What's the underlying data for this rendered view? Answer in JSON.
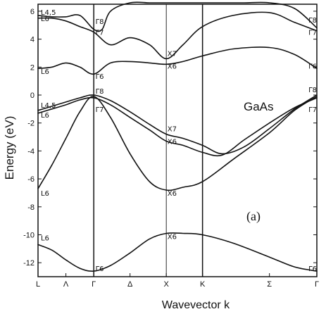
{
  "chart_data": {
    "type": "line",
    "title": "",
    "material_label": "GaAs",
    "panel_label": "(a)",
    "xlabel": "Wavevector k",
    "ylabel": "Energy (eV)",
    "ylim": [
      -13,
      6.5
    ],
    "yticks": [
      6,
      4,
      2,
      0,
      -2,
      -4,
      -6,
      -8,
      -10,
      -12
    ],
    "xlim": [
      0,
      5
    ],
    "xticks": [
      {
        "pos": 0.0,
        "label": "L"
      },
      {
        "pos": 0.5,
        "label": "Λ"
      },
      {
        "pos": 1.0,
        "label": "Γ"
      },
      {
        "pos": 1.65,
        "label": "Δ"
      },
      {
        "pos": 2.3,
        "label": "X"
      },
      {
        "pos": 2.95,
        "label": "K"
      },
      {
        "pos": 4.15,
        "label": "Σ"
      },
      {
        "pos": 5.0,
        "label": "Γ"
      }
    ],
    "vlines": [
      1.0,
      2.3,
      2.95
    ],
    "series": [
      {
        "x": [
          0,
          0.25,
          0.5,
          0.75,
          1.0,
          1.3,
          1.65,
          2.0,
          2.3,
          2.6,
          2.95,
          3.5,
          4.15,
          4.6,
          5.0
        ],
        "y": [
          -10.7,
          -11.1,
          -11.8,
          -12.4,
          -12.6,
          -12.2,
          -11.3,
          -10.3,
          -9.9,
          -9.9,
          -10.0,
          -10.6,
          -11.6,
          -12.3,
          -12.6
        ]
      },
      {
        "x": [
          0,
          0.25,
          0.5,
          0.75,
          1.0,
          1.3,
          1.65,
          2.0,
          2.3,
          2.6,
          2.95,
          3.5,
          4.15,
          4.6,
          5.0
        ],
        "y": [
          -6.7,
          -5.0,
          -3.1,
          -1.2,
          -0.1,
          -1.6,
          -4.2,
          -6.2,
          -6.8,
          -6.6,
          -6.2,
          -4.6,
          -2.7,
          -1.1,
          -0.1
        ]
      },
      {
        "x": [
          0,
          0.25,
          0.5,
          0.75,
          1.0,
          1.3,
          1.65,
          2.0,
          2.3,
          2.6,
          2.95,
          3.3,
          3.7,
          4.15,
          4.6,
          5.0
        ],
        "y": [
          -1.3,
          -1.0,
          -0.7,
          -0.35,
          -0.2,
          -0.7,
          -1.6,
          -2.5,
          -3.3,
          -3.6,
          -4.1,
          -4.3,
          -3.2,
          -2.0,
          -0.9,
          -0.2
        ]
      },
      {
        "x": [
          0,
          0.25,
          0.5,
          0.75,
          1.0,
          1.3,
          1.65,
          2.0,
          2.3,
          2.6,
          2.95,
          3.3,
          3.7,
          4.15,
          4.6,
          5.0
        ],
        "y": [
          -1.1,
          -0.8,
          -0.5,
          -0.2,
          0.0,
          -0.4,
          -1.2,
          -2.1,
          -2.8,
          -3.1,
          -3.6,
          -4.2,
          -3.7,
          -2.4,
          -1.0,
          0.0
        ]
      },
      {
        "x": [
          0,
          0.25,
          0.5,
          0.75,
          1.0,
          1.3,
          1.65,
          2.0,
          2.3,
          2.6,
          2.95,
          3.5,
          4.15,
          4.6,
          5.0
        ],
        "y": [
          1.9,
          2.0,
          2.3,
          2.0,
          1.5,
          2.3,
          2.4,
          2.3,
          2.2,
          2.4,
          2.8,
          3.3,
          3.4,
          2.9,
          1.9
        ]
      },
      {
        "x": [
          0,
          0.25,
          0.5,
          0.75,
          1.0,
          1.3,
          1.65,
          2.0,
          2.3,
          2.6,
          2.95,
          3.5,
          4.15,
          4.6,
          5.0
        ],
        "y": [
          5.5,
          5.5,
          5.3,
          4.9,
          4.5,
          3.6,
          4.1,
          3.6,
          2.6,
          3.6,
          4.9,
          5.7,
          5.9,
          5.2,
          4.6
        ]
      },
      {
        "x": [
          0,
          0.25,
          0.5,
          0.75,
          1.0,
          1.15,
          1.3,
          1.65,
          2.0,
          2.3,
          2.6,
          2.95,
          3.3,
          3.7,
          4.15,
          4.6,
          5.0
        ],
        "y": [
          5.7,
          5.6,
          5.6,
          5.7,
          4.7,
          4.7,
          6.0,
          6.6,
          6.6,
          6.6,
          6.6,
          6.6,
          6.6,
          6.6,
          6.6,
          6.2,
          4.8
        ]
      }
    ],
    "annotations": [
      {
        "text": "L4,5",
        "x": 0.05,
        "y": 5.75
      },
      {
        "text": "L6",
        "x": 0.05,
        "y": 5.3
      },
      {
        "text": "Γ8",
        "x": 1.03,
        "y": 5.1
      },
      {
        "text": "Γ7",
        "x": 1.03,
        "y": 4.3
      },
      {
        "text": "L6",
        "x": 0.05,
        "y": 1.5
      },
      {
        "text": "Γ6",
        "x": 1.03,
        "y": 1.15
      },
      {
        "text": "Γ8",
        "x": 1.03,
        "y": 0.1
      },
      {
        "text": "L4,5",
        "x": 0.05,
        "y": -0.9
      },
      {
        "text": "L6",
        "x": 0.05,
        "y": -1.6
      },
      {
        "text": "Γ7",
        "x": 1.03,
        "y": -1.2
      },
      {
        "text": "L6",
        "x": 0.05,
        "y": -7.2
      },
      {
        "text": "L6",
        "x": 0.05,
        "y": -10.4
      },
      {
        "text": "Γ6",
        "x": 1.03,
        "y": -12.6
      },
      {
        "text": "X7",
        "x": 2.32,
        "y": 2.8
      },
      {
        "text": "X6",
        "x": 2.32,
        "y": 1.9
      },
      {
        "text": "X7",
        "x": 2.32,
        "y": -2.6
      },
      {
        "text": "X6",
        "x": 2.32,
        "y": -3.5
      },
      {
        "text": "X6",
        "x": 2.32,
        "y": -7.2
      },
      {
        "text": "X6",
        "x": 2.32,
        "y": -10.3
      },
      {
        "text": "Γ8",
        "x": 4.85,
        "y": 5.2
      },
      {
        "text": "Γ7",
        "x": 4.85,
        "y": 4.3
      },
      {
        "text": "Γ6",
        "x": 4.85,
        "y": 1.9
      },
      {
        "text": "Γ8",
        "x": 4.85,
        "y": 0.2
      },
      {
        "text": "Γ7",
        "x": 4.85,
        "y": -1.2
      },
      {
        "text": "Γ6",
        "x": 4.85,
        "y": -12.6
      }
    ]
  }
}
